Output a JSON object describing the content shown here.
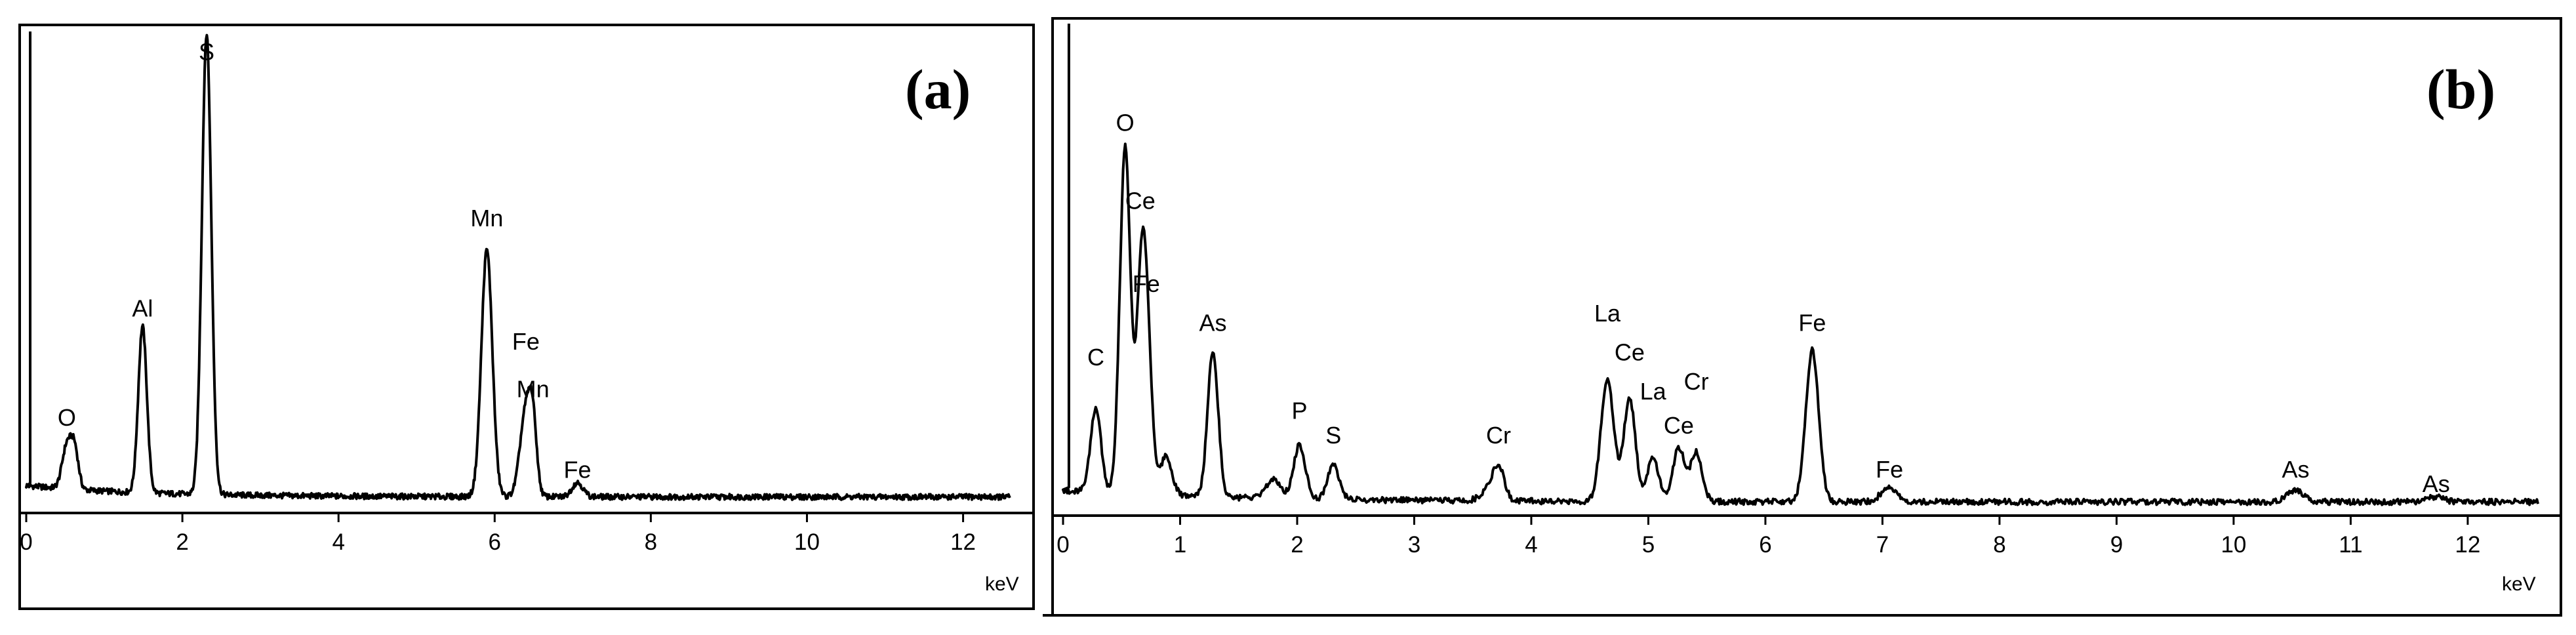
{
  "chart_data": [
    {
      "type": "line",
      "panel_label": "(a)",
      "xlabel": "keV",
      "xlim": [
        0,
        12.6
      ],
      "ylim": [
        0,
        1.0
      ],
      "x_ticks": [
        "0",
        "2",
        "4",
        "6",
        "8",
        "10",
        "12"
      ],
      "background": 0.02,
      "left_edge_spike": true,
      "peaks": [
        {
          "label": "O",
          "x": 0.52,
          "y": 0.09,
          "width": 0.06,
          "label_y": 0.17
        },
        {
          "label": "",
          "x": 0.62,
          "y": 0.08,
          "width": 0.05
        },
        {
          "label": "Al",
          "x": 1.49,
          "y": 0.35,
          "width": 0.055,
          "label_y": 0.4
        },
        {
          "label": "S",
          "x": 2.31,
          "y": 0.97,
          "width": 0.06,
          "label_y": 0.94
        },
        {
          "label": "Mn",
          "x": 5.9,
          "y": 0.52,
          "width": 0.07,
          "label_y": 0.59
        },
        {
          "label": "Fe",
          "x": 6.4,
          "y": 0.18,
          "width": 0.075,
          "label_y": 0.33
        },
        {
          "label": "Mn",
          "x": 6.49,
          "y": 0.12,
          "width": 0.05,
          "label_y": 0.23
        },
        {
          "label": "Fe",
          "x": 7.06,
          "y": 0.03,
          "width": 0.07,
          "label_y": 0.06
        }
      ]
    },
    {
      "type": "line",
      "panel_label": "(b)",
      "xlabel": "keV",
      "xlim": [
        0,
        12.6
      ],
      "ylim": [
        0,
        1.0
      ],
      "x_ticks": [
        "0",
        "1",
        "2",
        "3",
        "4",
        "5",
        "6",
        "7",
        "8",
        "9",
        "10",
        "11",
        "12"
      ],
      "background": 0.02,
      "left_edge_spike": true,
      "peaks": [
        {
          "label": "C",
          "x": 0.28,
          "y": 0.17,
          "width": 0.045,
          "label_y": 0.3
        },
        {
          "label": "O",
          "x": 0.53,
          "y": 0.71,
          "width": 0.045,
          "label_y": 0.78
        },
        {
          "label": "Ce",
          "x": 0.66,
          "y": 0.3,
          "width": 0.04,
          "label_y": 0.62
        },
        {
          "label": "Fe",
          "x": 0.71,
          "y": 0.35,
          "width": 0.045,
          "label_y": 0.45
        },
        {
          "label": "",
          "x": 0.88,
          "y": 0.08,
          "width": 0.05
        },
        {
          "label": "As",
          "x": 1.28,
          "y": 0.3,
          "width": 0.045,
          "label_y": 0.37
        },
        {
          "label": "",
          "x": 1.8,
          "y": 0.04,
          "width": 0.06
        },
        {
          "label": "P",
          "x": 2.02,
          "y": 0.11,
          "width": 0.05,
          "label_y": 0.19
        },
        {
          "label": "S",
          "x": 2.31,
          "y": 0.07,
          "width": 0.05,
          "label_y": 0.14
        },
        {
          "label": "Cr",
          "x": 3.62,
          "y": 0.02,
          "width": 0.06
        },
        {
          "label": "Cr",
          "x": 3.72,
          "y": 0.07,
          "width": 0.05,
          "label_y": 0.14
        },
        {
          "label": "La",
          "x": 4.65,
          "y": 0.25,
          "width": 0.055,
          "label_y": 0.39
        },
        {
          "label": "Ce",
          "x": 4.84,
          "y": 0.21,
          "width": 0.05,
          "label_y": 0.31
        },
        {
          "label": "La",
          "x": 5.04,
          "y": 0.09,
          "width": 0.05,
          "label_y": 0.23
        },
        {
          "label": "Ce",
          "x": 5.26,
          "y": 0.11,
          "width": 0.05,
          "label_y": 0.16
        },
        {
          "label": "Cr",
          "x": 5.41,
          "y": 0.1,
          "width": 0.05,
          "label_y": 0.25
        },
        {
          "label": "Fe",
          "x": 6.4,
          "y": 0.31,
          "width": 0.055,
          "label_y": 0.37
        },
        {
          "label": "Fe",
          "x": 7.06,
          "y": 0.03,
          "width": 0.07,
          "label_y": 0.07
        },
        {
          "label": "As",
          "x": 10.53,
          "y": 0.025,
          "width": 0.07,
          "label_y": 0.07
        },
        {
          "label": "As",
          "x": 11.73,
          "y": 0.01,
          "width": 0.07,
          "label_y": 0.04
        }
      ]
    }
  ]
}
